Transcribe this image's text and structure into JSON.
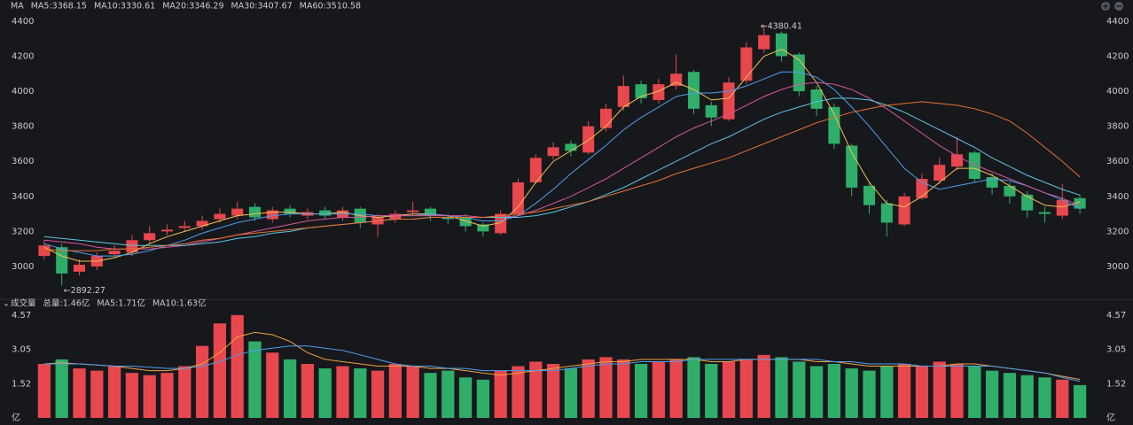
{
  "chart_data": [
    {
      "type": "candlestick",
      "title": "MA",
      "up_color": "#e8474e",
      "down_color": "#2fae6a",
      "open": [
        3060,
        3110,
        2970,
        3000,
        3070,
        3080,
        3150,
        3200,
        3220,
        3230,
        3270,
        3290,
        3340,
        3270,
        3330,
        3290,
        3320,
        3280,
        3330,
        3240,
        3270,
        3310,
        3330,
        3280,
        3280,
        3240,
        3190,
        3300,
        3480,
        3630,
        3700,
        3650,
        3790,
        3910,
        4040,
        3950,
        4030,
        4110,
        3920,
        3840,
        4060,
        4240,
        4330,
        4210,
        4010,
        3910,
        3690,
        3460,
        3360,
        3240,
        3390,
        3490,
        3570,
        3650,
        3510,
        3460,
        3410,
        3310,
        3290,
        3390
      ],
      "high": [
        3150,
        3130,
        3040,
        3080,
        3120,
        3180,
        3230,
        3240,
        3260,
        3290,
        3330,
        3370,
        3360,
        3340,
        3350,
        3330,
        3340,
        3340,
        3340,
        3300,
        3320,
        3370,
        3340,
        3300,
        3300,
        3250,
        3320,
        3500,
        3640,
        3710,
        3720,
        3830,
        3930,
        4090,
        4060,
        4070,
        4210,
        4120,
        3940,
        4080,
        4280,
        4380.41,
        4340,
        4220,
        4030,
        3930,
        3700,
        3480,
        3380,
        3420,
        3530,
        3620,
        3740,
        3660,
        3530,
        3480,
        3430,
        3340,
        3470,
        3410
      ],
      "low": [
        3040,
        2892.27,
        2950,
        2980,
        3050,
        3060,
        3130,
        3180,
        3200,
        3210,
        3250,
        3270,
        3260,
        3250,
        3280,
        3270,
        3270,
        3260,
        3220,
        3170,
        3250,
        3290,
        3260,
        3240,
        3200,
        3170,
        3180,
        3290,
        3470,
        3610,
        3630,
        3640,
        3770,
        3890,
        3930,
        3930,
        4010,
        3870,
        3800,
        3830,
        4040,
        4220,
        4170,
        3970,
        3860,
        3670,
        3400,
        3300,
        3170,
        3230,
        3380,
        3470,
        3550,
        3480,
        3410,
        3360,
        3280,
        3250,
        3270,
        3300
      ],
      "close": [
        3120,
        2960,
        3010,
        3060,
        3090,
        3150,
        3190,
        3210,
        3230,
        3260,
        3300,
        3330,
        3280,
        3320,
        3300,
        3310,
        3290,
        3320,
        3250,
        3280,
        3300,
        3320,
        3290,
        3270,
        3230,
        3200,
        3300,
        3480,
        3620,
        3680,
        3660,
        3800,
        3900,
        4030,
        3960,
        4040,
        4100,
        3900,
        3850,
        4050,
        4250,
        4320,
        4200,
        4000,
        3900,
        3700,
        3450,
        3350,
        3250,
        3400,
        3500,
        3580,
        3640,
        3500,
        3450,
        3400,
        3320,
        3300,
        3380,
        3330
      ],
      "series": [
        {
          "name": "MA5:3368.15",
          "color": "#f2c14e",
          "values": [
            3110,
            3060,
            3030,
            3030,
            3050,
            3080,
            3130,
            3170,
            3200,
            3230,
            3260,
            3290,
            3300,
            3310,
            3310,
            3300,
            3300,
            3310,
            3290,
            3280,
            3290,
            3300,
            3300,
            3290,
            3260,
            3230,
            3250,
            3340,
            3480,
            3600,
            3660,
            3720,
            3800,
            3910,
            3970,
            4000,
            4050,
            4010,
            3950,
            3960,
            4080,
            4200,
            4240,
            4180,
            4050,
            3870,
            3650,
            3480,
            3360,
            3340,
            3400,
            3480,
            3560,
            3560,
            3520,
            3460,
            3400,
            3350,
            3340,
            3368.15
          ]
        },
        {
          "name": "MA10:3330.61",
          "color": "#4b9ff0",
          "values": [
            3130,
            3100,
            3080,
            3060,
            3060,
            3070,
            3090,
            3120,
            3150,
            3190,
            3220,
            3250,
            3270,
            3290,
            3300,
            3300,
            3300,
            3300,
            3300,
            3290,
            3290,
            3290,
            3300,
            3290,
            3280,
            3260,
            3260,
            3290,
            3360,
            3440,
            3530,
            3610,
            3690,
            3780,
            3850,
            3910,
            3970,
            3990,
            3990,
            4000,
            4030,
            4070,
            4110,
            4110,
            4080,
            4010,
            3910,
            3800,
            3680,
            3560,
            3480,
            3440,
            3460,
            3480,
            3500,
            3490,
            3460,
            3420,
            3380,
            3330.61
          ]
        },
        {
          "name": "MA20:3346.29",
          "color": "#d5569e",
          "values": [
            3150,
            3140,
            3130,
            3110,
            3100,
            3100,
            3100,
            3110,
            3120,
            3140,
            3160,
            3180,
            3200,
            3220,
            3240,
            3260,
            3270,
            3280,
            3280,
            3290,
            3290,
            3290,
            3290,
            3290,
            3290,
            3280,
            3280,
            3290,
            3320,
            3360,
            3400,
            3450,
            3500,
            3560,
            3620,
            3680,
            3740,
            3790,
            3830,
            3870,
            3920,
            3970,
            4010,
            4040,
            4050,
            4040,
            4010,
            3960,
            3900,
            3830,
            3760,
            3690,
            3630,
            3580,
            3540,
            3500,
            3460,
            3420,
            3390,
            3346.29
          ]
        },
        {
          "name": "MA30:3407.67",
          "color": "#5ac6e4",
          "values": [
            3170,
            3160,
            3150,
            3140,
            3130,
            3120,
            3120,
            3120,
            3120,
            3130,
            3140,
            3160,
            3170,
            3190,
            3200,
            3220,
            3230,
            3240,
            3250,
            3260,
            3270,
            3270,
            3280,
            3280,
            3280,
            3280,
            3280,
            3280,
            3290,
            3310,
            3340,
            3370,
            3410,
            3450,
            3500,
            3550,
            3600,
            3650,
            3700,
            3740,
            3790,
            3840,
            3880,
            3910,
            3940,
            3960,
            3960,
            3950,
            3920,
            3880,
            3830,
            3780,
            3730,
            3680,
            3620,
            3570,
            3520,
            3480,
            3440,
            3407.67
          ]
        },
        {
          "name": "MA60:3510.58",
          "color": "#e8722f",
          "values": [
            3100,
            3090,
            3090,
            3090,
            3100,
            3100,
            3110,
            3120,
            3130,
            3150,
            3160,
            3180,
            3190,
            3200,
            3210,
            3220,
            3230,
            3240,
            3250,
            3260,
            3270,
            3270,
            3280,
            3280,
            3280,
            3280,
            3290,
            3300,
            3310,
            3330,
            3350,
            3370,
            3400,
            3430,
            3460,
            3490,
            3530,
            3560,
            3590,
            3620,
            3660,
            3700,
            3740,
            3780,
            3820,
            3850,
            3880,
            3900,
            3920,
            3930,
            3940,
            3930,
            3920,
            3900,
            3870,
            3830,
            3760,
            3680,
            3600,
            3510.58
          ]
        }
      ],
      "annotations": [
        "←4380.41",
        "←2892.27"
      ],
      "ylim": [
        2828,
        4460
      ],
      "yticks": [
        3000,
        3200,
        3400,
        3600,
        3800,
        4000,
        4200,
        4400
      ]
    },
    {
      "type": "volume",
      "title": "成交量",
      "subtitle": "总量:1.46亿",
      "values": [
        2.4,
        2.6,
        2.2,
        2.1,
        2.3,
        2.0,
        1.9,
        2.0,
        2.3,
        3.2,
        4.2,
        4.57,
        3.4,
        2.9,
        2.6,
        2.4,
        2.2,
        2.3,
        2.2,
        2.1,
        2.4,
        2.3,
        2.0,
        2.1,
        1.8,
        1.7,
        2.1,
        2.3,
        2.5,
        2.4,
        2.2,
        2.6,
        2.7,
        2.6,
        2.4,
        2.5,
        2.6,
        2.7,
        2.4,
        2.5,
        2.6,
        2.8,
        2.7,
        2.5,
        2.3,
        2.4,
        2.2,
        2.1,
        2.3,
        2.4,
        2.3,
        2.5,
        2.4,
        2.3,
        2.1,
        2.0,
        1.9,
        1.8,
        1.7,
        1.46
      ],
      "series": [
        {
          "name": "MA5:1.71亿",
          "color": "#f0a23c",
          "values": [
            2.4,
            2.45,
            2.4,
            2.35,
            2.3,
            2.2,
            2.1,
            2.1,
            2.2,
            2.4,
            2.9,
            3.6,
            3.8,
            3.7,
            3.4,
            2.9,
            2.6,
            2.5,
            2.4,
            2.3,
            2.3,
            2.3,
            2.2,
            2.2,
            2.1,
            2.0,
            1.9,
            2.0,
            2.1,
            2.2,
            2.3,
            2.4,
            2.5,
            2.5,
            2.6,
            2.6,
            2.6,
            2.6,
            2.5,
            2.5,
            2.6,
            2.6,
            2.6,
            2.6,
            2.5,
            2.5,
            2.4,
            2.3,
            2.3,
            2.3,
            2.3,
            2.3,
            2.4,
            2.4,
            2.3,
            2.2,
            2.1,
            2.0,
            1.85,
            1.71
          ]
        },
        {
          "name": "MA10:1.63亿",
          "color": "#4b9ff0",
          "values": [
            2.4,
            2.4,
            2.4,
            2.35,
            2.3,
            2.3,
            2.25,
            2.2,
            2.2,
            2.3,
            2.5,
            2.8,
            3.0,
            3.1,
            3.2,
            3.2,
            3.1,
            3.0,
            2.8,
            2.6,
            2.4,
            2.3,
            2.3,
            2.2,
            2.2,
            2.1,
            2.1,
            2.1,
            2.1,
            2.1,
            2.2,
            2.3,
            2.4,
            2.4,
            2.5,
            2.5,
            2.5,
            2.6,
            2.6,
            2.6,
            2.6,
            2.6,
            2.6,
            2.6,
            2.6,
            2.5,
            2.5,
            2.4,
            2.4,
            2.4,
            2.3,
            2.3,
            2.3,
            2.3,
            2.3,
            2.2,
            2.1,
            2.0,
            1.8,
            1.63
          ]
        }
      ],
      "ylim": [
        0,
        4.8
      ],
      "yticks": [
        {
          "value": 0,
          "label": "亿"
        },
        1.52,
        3.05,
        4.57
      ]
    }
  ]
}
